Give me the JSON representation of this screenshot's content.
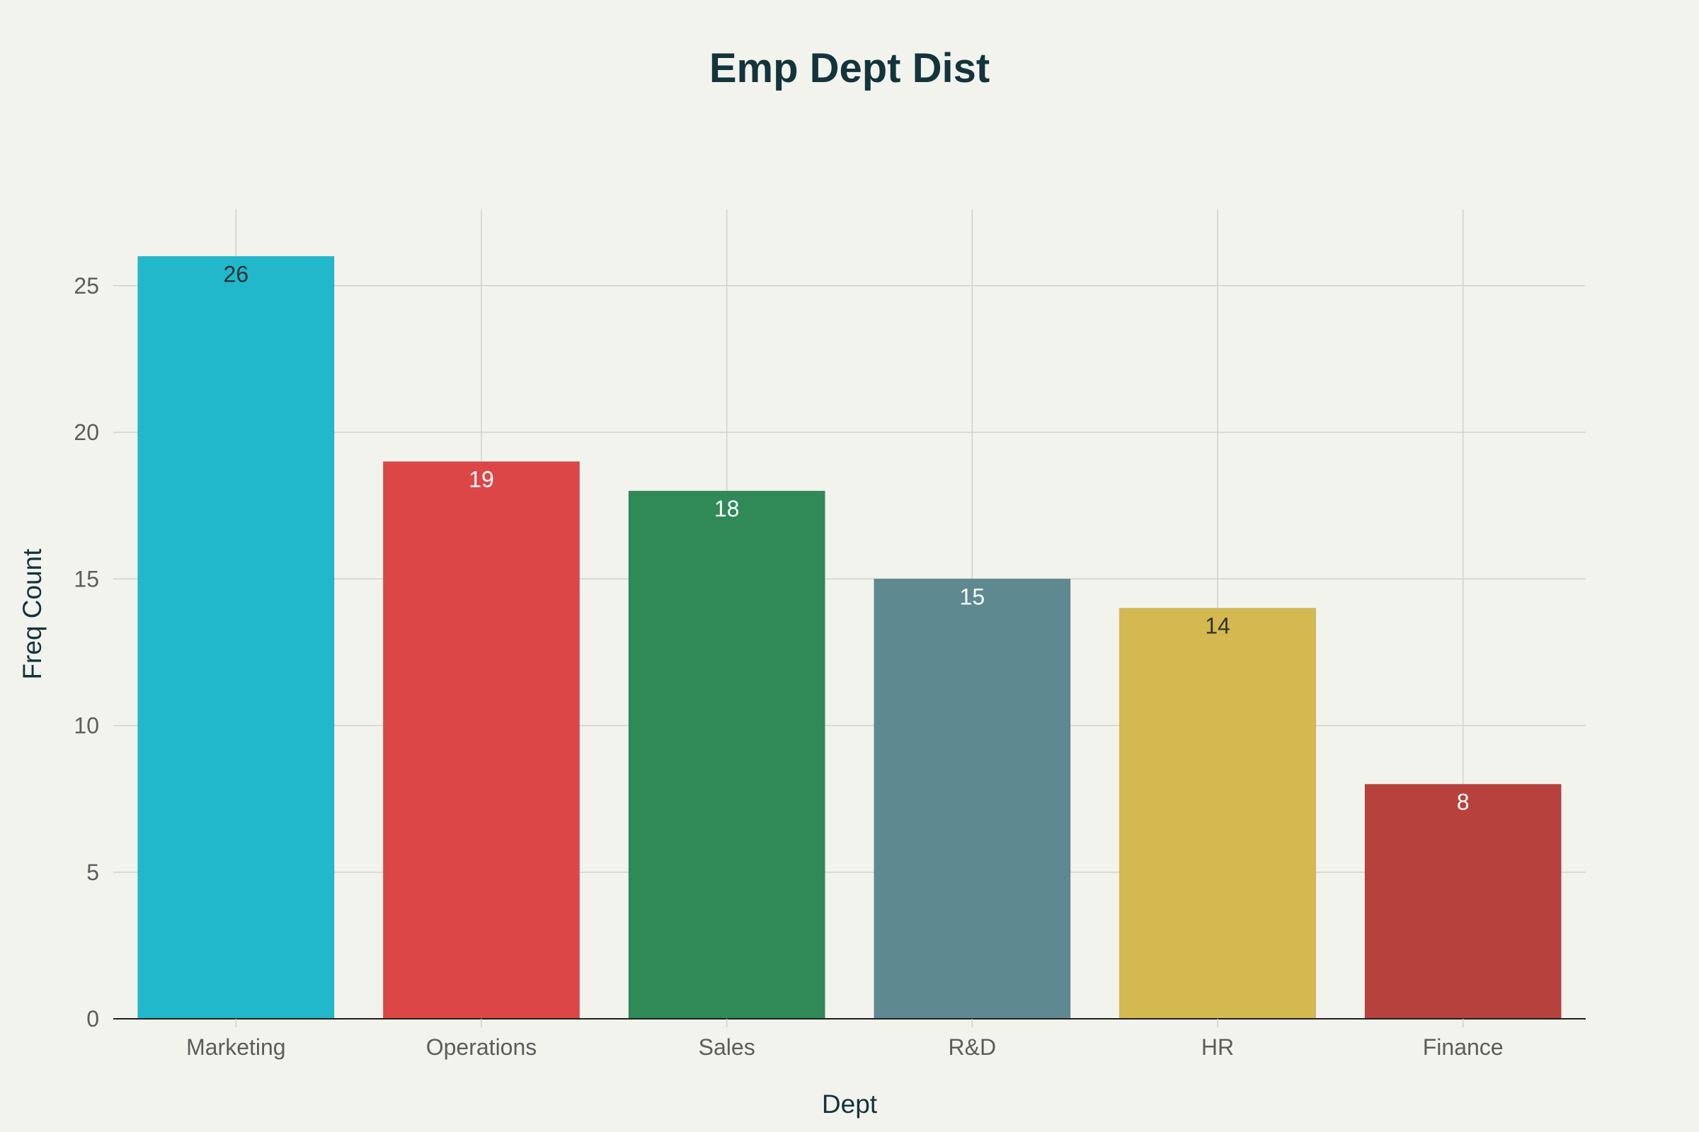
{
  "chart_data": {
    "type": "bar",
    "title": "Emp Dept Dist",
    "xlabel": "Dept",
    "ylabel": "Freq Count",
    "categories": [
      "Marketing",
      "Operations",
      "Sales",
      "R&D",
      "HR",
      "Finance"
    ],
    "values": [
      26,
      19,
      18,
      15,
      14,
      8
    ],
    "colors": [
      "#21b8cb",
      "#dc4647",
      "#2f8a58",
      "#5e8990",
      "#d3b94f",
      "#b7413d"
    ],
    "label_colors": [
      "#333333",
      "#ffffff",
      "#ffffff",
      "#ffffff",
      "#333333",
      "#ffffff"
    ],
    "ylim": [
      0,
      27.6
    ],
    "yticks": [
      0,
      5,
      10,
      15,
      20,
      25
    ],
    "grid": true,
    "legend": "none"
  }
}
